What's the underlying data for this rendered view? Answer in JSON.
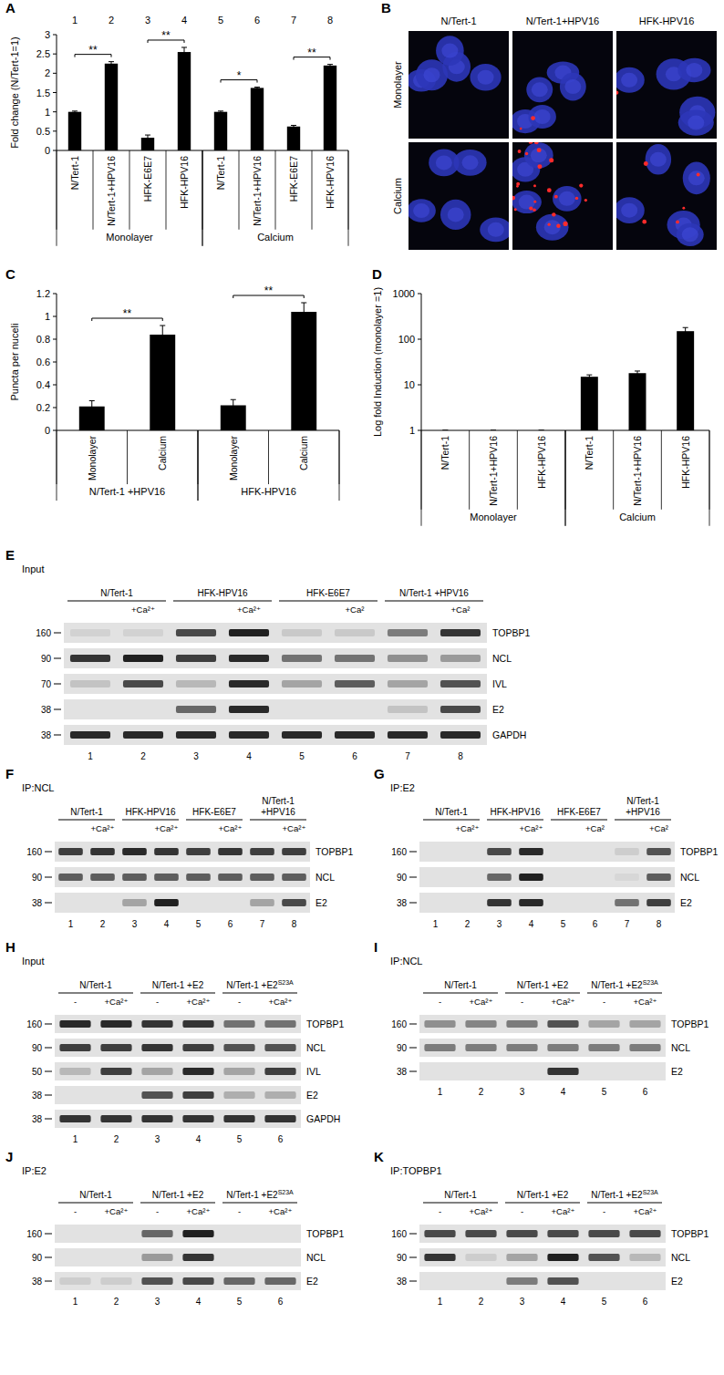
{
  "chart_data": [
    {
      "type": "bar",
      "panel": "A",
      "y_label": "Fold change (N/Tert-1=1)",
      "lane_numbers": [
        "1",
        "2",
        "3",
        "4",
        "5",
        "6",
        "7",
        "8"
      ],
      "categories": [
        "N/Tert-1",
        "N/Tert-1+HPV16",
        "HFK-E6E7",
        "HFK-HPV16",
        "N/Tert-1",
        "N/Tert-1+HPV16",
        "HFK-E6E7",
        "HFK-HPV16"
      ],
      "groups": [
        {
          "label": "Monolayer",
          "span": [
            0,
            3
          ]
        },
        {
          "label": "Calcium",
          "span": [
            4,
            7
          ]
        }
      ],
      "values": [
        1,
        2.25,
        0.33,
        2.55,
        1,
        1.62,
        0.62,
        2.2
      ],
      "errors": [
        0.02,
        0.05,
        0.07,
        0.12,
        0.02,
        0.02,
        0.03,
        0.03
      ],
      "color": "#000000",
      "ylim": [
        0,
        3
      ],
      "yticks": [
        0,
        0.5,
        1,
        1.5,
        2,
        2.5,
        3
      ],
      "significance": [
        {
          "bars": [
            0,
            1
          ],
          "label": "**"
        },
        {
          "bars": [
            2,
            3
          ],
          "label": "**"
        },
        {
          "bars": [
            4,
            5
          ],
          "label": "*"
        },
        {
          "bars": [
            6,
            7
          ],
          "label": "**"
        }
      ]
    },
    {
      "type": "bar",
      "panel": "C",
      "y_label": "Puncta per nuceli",
      "categories": [
        "Monolayer",
        "Calcium",
        "Monolayer",
        "Calcium"
      ],
      "groups": [
        {
          "label": "N/Tert-1 +HPV16",
          "span": [
            0,
            1
          ]
        },
        {
          "label": "HFK-HPV16",
          "span": [
            2,
            3
          ]
        }
      ],
      "values": [
        0.21,
        0.84,
        0.22,
        1.04
      ],
      "errors": [
        0.05,
        0.08,
        0.05,
        0.08
      ],
      "color": "#000000",
      "ylim": [
        0,
        1.2
      ],
      "yticks": [
        0,
        0.2,
        0.4,
        0.6,
        0.8,
        1,
        1.2
      ],
      "significance": [
        {
          "bars": [
            0,
            1
          ],
          "label": "**"
        },
        {
          "bars": [
            2,
            3
          ],
          "label": "**"
        }
      ]
    },
    {
      "type": "bar",
      "panel": "D",
      "y_label": "Log fold Induction (monolayer =1)",
      "log": "y",
      "categories": [
        "N/Tert-1",
        "N/Tert-1+HPV16",
        "HFK-HPV16",
        "N/Tert-1",
        "N/Tert-1+HPV16",
        "HFK-HPV16"
      ],
      "groups": [
        {
          "label": "Monolayer",
          "span": [
            0,
            2
          ]
        },
        {
          "label": "Calcium",
          "span": [
            3,
            5
          ]
        }
      ],
      "values": [
        1,
        1,
        1,
        15,
        18,
        150
      ],
      "errors": [
        0,
        0,
        0,
        1.5,
        2,
        30
      ],
      "color": "#000000",
      "ylim": [
        1,
        1000
      ],
      "yticks": [
        1,
        10,
        100,
        1000
      ]
    }
  ],
  "micrographs": {
    "panel": "B",
    "columns": [
      "N/Tert-1",
      "N/Tert-1+HPV16",
      "HFK-HPV16"
    ],
    "rows": [
      "Monolayer",
      "Calcium"
    ],
    "puncta": [
      [
        0,
        2,
        1
      ],
      [
        0,
        26,
        6
      ]
    ]
  },
  "blots": [
    {
      "panel": "E",
      "title": "Input",
      "groups": [
        {
          "label": "N/Tert-1",
          "lanes": 2
        },
        {
          "label": "HFK-HPV16",
          "lanes": 2
        },
        {
          "label": "HFK-E6E7",
          "lanes": 2
        },
        {
          "label": "N/Tert-1 +HPV16",
          "lanes": 2
        }
      ],
      "lane_labels": [
        null,
        "+Ca²⁺",
        null,
        "+Ca²⁺",
        null,
        "+Ca²",
        null,
        "+Ca²"
      ],
      "lane_numbers": [
        "1",
        "2",
        "3",
        "4",
        "5",
        "6",
        "7",
        "8"
      ],
      "rows": [
        {
          "protein": "TOPBP1",
          "mw": "160",
          "intensity": [
            0.08,
            0.08,
            0.75,
            0.95,
            0.12,
            0.12,
            0.5,
            0.85
          ]
        },
        {
          "protein": "NCL",
          "mw": "90",
          "intensity": [
            0.85,
            0.95,
            0.8,
            0.9,
            0.55,
            0.55,
            0.4,
            0.35
          ]
        },
        {
          "protein": "IVL",
          "mw": "70",
          "intensity": [
            0.15,
            0.75,
            0.2,
            0.9,
            0.3,
            0.65,
            0.3,
            0.7
          ]
        },
        {
          "protein": "E2",
          "mw": "38",
          "intensity": [
            0,
            0,
            0.6,
            0.9,
            0,
            0,
            0.15,
            0.75
          ]
        },
        {
          "protein": "GAPDH",
          "mw": "38",
          "intensity": [
            0.9,
            0.9,
            0.9,
            0.9,
            0.9,
            0.9,
            0.9,
            0.9
          ]
        }
      ]
    },
    {
      "panel": "F",
      "title": "IP:NCL",
      "groups": [
        {
          "label": "N/Tert-1",
          "lanes": 2
        },
        {
          "label": "HFK-HPV16",
          "lanes": 2
        },
        {
          "label": "HFK-E6E7",
          "lanes": 2
        },
        {
          "label": "N/Tert-1 +HPV16",
          "lanes": 2
        }
      ],
      "lane_labels": [
        null,
        "+Ca²⁺",
        null,
        "+Ca²⁺",
        null,
        "+Ca²⁺",
        null,
        "+Ca²⁺"
      ],
      "lane_numbers": [
        "1",
        "2",
        "3",
        "4",
        "5",
        "6",
        "7",
        "8"
      ],
      "rows": [
        {
          "protein": "TOPBP1",
          "mw": "160",
          "intensity": [
            0.8,
            0.85,
            0.9,
            0.85,
            0.8,
            0.85,
            0.8,
            0.8
          ]
        },
        {
          "protein": "NCL",
          "mw": "90",
          "intensity": [
            0.65,
            0.65,
            0.65,
            0.65,
            0.65,
            0.65,
            0.65,
            0.65
          ]
        },
        {
          "protein": "E2",
          "mw": "38",
          "intensity": [
            0,
            0,
            0.3,
            0.95,
            0,
            0,
            0.3,
            0.75
          ]
        }
      ]
    },
    {
      "panel": "G",
      "title": "IP:E2",
      "groups": [
        {
          "label": "N/Tert-1",
          "lanes": 2
        },
        {
          "label": "HFK-HPV16",
          "lanes": 2
        },
        {
          "label": "HFK-E6E7",
          "lanes": 2
        },
        {
          "label": "N/Tert-1 +HPV16",
          "lanes": 2
        }
      ],
      "lane_labels": [
        null,
        "+Ca²⁺",
        null,
        "+Ca²⁺",
        null,
        "+Ca²",
        null,
        "+Ca²"
      ],
      "lane_numbers": [
        "1",
        "2",
        "3",
        "4",
        "5",
        "6",
        "7",
        "8"
      ],
      "rows": [
        {
          "protein": "TOPBP1",
          "mw": "160",
          "intensity": [
            0,
            0,
            0.75,
            0.9,
            0,
            0,
            0.1,
            0.7
          ]
        },
        {
          "protein": "NCL",
          "mw": "90",
          "intensity": [
            0,
            0,
            0.6,
            0.95,
            0,
            0,
            0.05,
            0.65
          ]
        },
        {
          "protein": "E2",
          "mw": "38",
          "intensity": [
            0,
            0,
            0.85,
            0.9,
            0,
            0,
            0.55,
            0.8
          ]
        }
      ]
    },
    {
      "panel": "H",
      "title": "Input",
      "groups": [
        {
          "label": "N/Tert-1",
          "lanes": 2
        },
        {
          "label": "N/Tert-1 +E2",
          "lanes": 2
        },
        {
          "label": "N/Tert-1 +E2",
          "sup": "S23A",
          "lanes": 2
        }
      ],
      "lane_labels": [
        "-",
        "+Ca²⁺",
        "-",
        "+Ca²⁺",
        "-",
        "+Ca²⁺"
      ],
      "lane_numbers": [
        "1",
        "2",
        "3",
        "4",
        "5",
        "6"
      ],
      "rows": [
        {
          "protein": "TOPBP1",
          "mw": "160",
          "intensity": [
            0.9,
            0.9,
            0.85,
            0.85,
            0.55,
            0.55
          ]
        },
        {
          "protein": "NCL",
          "mw": "90",
          "intensity": [
            0.8,
            0.8,
            0.85,
            0.8,
            0.7,
            0.7
          ]
        },
        {
          "protein": "IVL",
          "mw": "50",
          "intensity": [
            0.2,
            0.8,
            0.3,
            0.9,
            0.3,
            0.8
          ]
        },
        {
          "protein": "E2",
          "mw": "38",
          "intensity": [
            0,
            0,
            0.7,
            0.8,
            0.25,
            0.25
          ]
        },
        {
          "protein": "GAPDH",
          "mw": "38",
          "intensity": [
            0.85,
            0.85,
            0.85,
            0.85,
            0.85,
            0.85
          ]
        }
      ]
    },
    {
      "panel": "I",
      "title": "IP:NCL",
      "groups": [
        {
          "label": "N/Tert-1",
          "lanes": 2
        },
        {
          "label": "N/Tert-1 +E2",
          "lanes": 2
        },
        {
          "label": "N/Tert-1 +E2",
          "sup": "S23A",
          "lanes": 2
        }
      ],
      "lane_labels": [
        "-",
        "+Ca²⁺",
        "-",
        "+Ca²⁺",
        "-",
        "+Ca²⁺"
      ],
      "lane_numbers": [
        "1",
        "2",
        "3",
        "4",
        "5",
        "6"
      ],
      "rows": [
        {
          "protein": "TOPBP1",
          "mw": "160",
          "intensity": [
            0.4,
            0.45,
            0.5,
            0.7,
            0.3,
            0.3
          ]
        },
        {
          "protein": "NCL",
          "mw": "90",
          "intensity": [
            0.5,
            0.5,
            0.5,
            0.5,
            0.5,
            0.5
          ]
        },
        {
          "protein": "E2",
          "mw": "38",
          "intensity": [
            0,
            0,
            0,
            0.85,
            0,
            0
          ]
        }
      ]
    },
    {
      "panel": "J",
      "title": "IP:E2",
      "groups": [
        {
          "label": "N/Tert-1",
          "lanes": 2
        },
        {
          "label": "N/Tert-1 +E2",
          "lanes": 2
        },
        {
          "label": "N/Tert-1 +E2",
          "sup": "S23A",
          "lanes": 2
        }
      ],
      "lane_labels": [
        "-",
        "+Ca²⁺",
        "-",
        "+Ca²⁺",
        "-",
        "+Ca²⁺"
      ],
      "lane_numbers": [
        "1",
        "2",
        "3",
        "4",
        "5",
        "6"
      ],
      "rows": [
        {
          "protein": "TOPBP1",
          "mw": "160",
          "intensity": [
            0,
            0,
            0.6,
            0.95,
            0,
            0
          ]
        },
        {
          "protein": "NCL",
          "mw": "90",
          "intensity": [
            0,
            0,
            0.35,
            0.85,
            0,
            0
          ]
        },
        {
          "protein": "E2",
          "mw": "38",
          "intensity": [
            0.1,
            0.1,
            0.7,
            0.75,
            0.6,
            0.6
          ]
        }
      ]
    },
    {
      "panel": "K",
      "title": "IP:TOPBP1",
      "groups": [
        {
          "label": "N/Tert-1",
          "lanes": 2
        },
        {
          "label": "N/Tert-1 +E2",
          "lanes": 2
        },
        {
          "label": "N/Tert-1 +E2",
          "sup": "S23A",
          "lanes": 2
        }
      ],
      "lane_labels": [
        "-",
        "+Ca²⁺",
        "-",
        "+Ca²⁺",
        "-",
        "+Ca²⁺"
      ],
      "lane_numbers": [
        "1",
        "2",
        "3",
        "4",
        "5",
        "6"
      ],
      "rows": [
        {
          "protein": "TOPBP1",
          "mw": "160",
          "intensity": [
            0.75,
            0.75,
            0.75,
            0.75,
            0.75,
            0.75
          ]
        },
        {
          "protein": "NCL",
          "mw": "90",
          "intensity": [
            0.85,
            0.1,
            0.3,
            0.95,
            0.7,
            0.2
          ]
        },
        {
          "protein": "E2",
          "mw": "38",
          "intensity": [
            0,
            0,
            0.5,
            0.7,
            0,
            0
          ]
        }
      ]
    }
  ]
}
